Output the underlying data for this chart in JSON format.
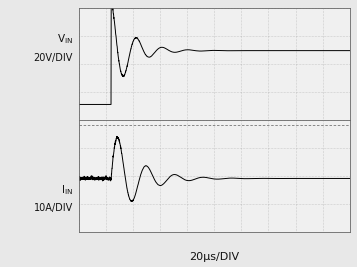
{
  "background_color": "#e8e8e8",
  "plot_bg": "#f0f0f0",
  "grid_color": "#999999",
  "trace_color": "#000000",
  "divider_color": "#888888",
  "top_label_line1": "V",
  "top_label_line2": "20V/DIV",
  "bottom_label_line1": "I",
  "bottom_label_line2": "10A/DIV",
  "xlabel": "20μs/DIV",
  "t_step": 1.2,
  "vin_pre": -1.8,
  "vin_settle": 0.6,
  "vin_amp": 2.2,
  "vin_tau": 0.7,
  "vin_freq": 1.05,
  "iin_pre": -0.1,
  "iin_settle": -0.1,
  "iin_amp": 2.4,
  "iin_tau": 0.9,
  "iin_freq": 0.95
}
